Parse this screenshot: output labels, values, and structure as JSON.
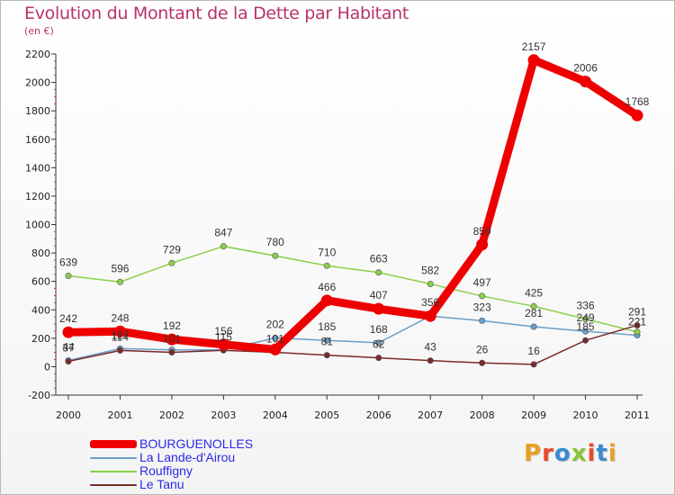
{
  "header": {
    "title": "Evolution du Montant de la Dette par Habitant",
    "subtitle": "(en €)"
  },
  "logo": {
    "text": "Proxiti",
    "colors": [
      "#e8a020",
      "#e84a2a",
      "#3a8ad4",
      "#8ac43a",
      "#e84a2a",
      "#3a8ad4",
      "#e8a020"
    ]
  },
  "chart_data": {
    "type": "line",
    "categories": [
      "2000",
      "2001",
      "2002",
      "2003",
      "2004",
      "2005",
      "2006",
      "2007",
      "2008",
      "2009",
      "2010",
      "2011"
    ],
    "ylim": [
      -200,
      2200
    ],
    "yticks": [
      "-200",
      "0",
      "200",
      "400",
      "600",
      "800",
      "1000",
      "1200",
      "1400",
      "1600",
      "1800",
      "2000",
      "2200"
    ],
    "grid": false,
    "legend_position": "bottom-left",
    "series": [
      {
        "name": "BOURGUENOLLES",
        "color": "#ee0000",
        "values": [
          242,
          248,
          192,
          156,
          121,
          466,
          407,
          356,
          859,
          2157,
          2006,
          1768
        ],
        "labels": [
          "242",
          "248",
          "192",
          "156",
          "",
          "466",
          "407",
          "356",
          "859",
          "2157",
          "2006",
          "1768"
        ]
      },
      {
        "name": "La Lande-d'Airou",
        "color": "#6a9ec8",
        "values": [
          44,
          127,
          118,
          118,
          202,
          185,
          168,
          356,
          323,
          281,
          249,
          221
        ],
        "labels": [
          "44",
          "127",
          "",
          "",
          "202",
          "185",
          "168",
          "",
          "323",
          "281",
          "249",
          "221"
        ]
      },
      {
        "name": "Rouffigny",
        "color": "#8ad04a",
        "values": [
          639,
          596,
          729,
          847,
          780,
          710,
          663,
          582,
          497,
          425,
          336,
          244
        ],
        "labels": [
          "639",
          "596",
          "729",
          "847",
          "780",
          "710",
          "663",
          "582",
          "497",
          "425",
          "336",
          ""
        ]
      },
      {
        "name": "Le Tanu",
        "color": "#7a2a2a",
        "values": [
          37,
          114,
          101,
          115,
          101,
          81,
          62,
          43,
          26,
          16,
          185,
          291
        ],
        "labels": [
          "37",
          "114",
          "101",
          "115",
          "101",
          "81",
          "62",
          "43",
          "26",
          "16",
          "185",
          "291"
        ]
      }
    ]
  }
}
